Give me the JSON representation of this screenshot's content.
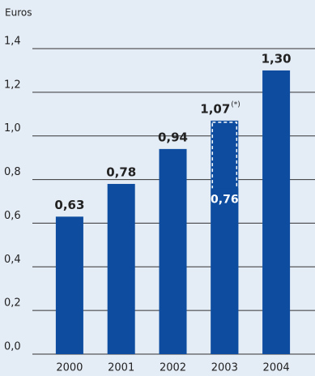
{
  "chart_data": {
    "type": "bar",
    "y_axis_label": "Euros",
    "categories": [
      "2000",
      "2001",
      "2002",
      "2003",
      "2004"
    ],
    "series": [
      {
        "color": "#0d4c9f",
        "values": [
          0.63,
          0.78,
          0.94,
          0.76,
          1.3
        ],
        "value_labels": [
          "0,63",
          "0,78",
          "0,94",
          "0,76",
          "1,30"
        ]
      },
      {
        "color": "#0d4c9f",
        "style": "dashed",
        "values": [
          null,
          null,
          null,
          1.07,
          null
        ],
        "value_labels": [
          null,
          null,
          null,
          "1,07",
          null
        ]
      }
    ],
    "annotation": "(*)",
    "ylim": [
      0,
      1.4
    ],
    "yticks": [
      {
        "value": 0,
        "label": "0,0"
      },
      {
        "value": 0.2,
        "label": "0,2"
      },
      {
        "value": 0.4,
        "label": "0,4"
      },
      {
        "value": 0.6,
        "label": "0,6"
      },
      {
        "value": 0.8,
        "label": "0,8"
      },
      {
        "value": 1.0,
        "label": "1,0"
      },
      {
        "value": 1.2,
        "label": "1,2"
      },
      {
        "value": 1.4,
        "label": "1,4"
      }
    ],
    "grid": true
  }
}
